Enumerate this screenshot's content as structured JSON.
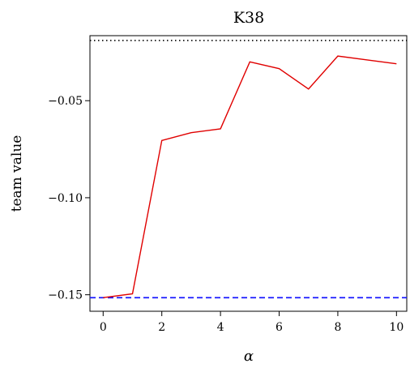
{
  "chart_data": {
    "type": "line",
    "title": "K38",
    "xlabel": "α",
    "ylabel": "team value",
    "xlim": [
      -0.45,
      10.35
    ],
    "ylim": [
      -0.1585,
      -0.0165
    ],
    "x_ticks": [
      0,
      2,
      4,
      6,
      8,
      10
    ],
    "y_ticks": [
      -0.15,
      -0.1,
      -0.05
    ],
    "y_tick_labels": [
      "−0.15",
      "−0.10",
      "−0.05"
    ],
    "grid": false,
    "series": [
      {
        "color": "#e00000",
        "style": "solid",
        "x": [
          0,
          1,
          2,
          3,
          4,
          5,
          6,
          7,
          8,
          9,
          10
        ],
        "y": [
          -0.1515,
          -0.1495,
          -0.0705,
          -0.0665,
          -0.0645,
          -0.03,
          -0.0335,
          -0.044,
          -0.027,
          -0.029,
          -0.031
        ]
      }
    ],
    "reference_lines": [
      {
        "y": -0.019,
        "style": "dotted",
        "color": "#000000"
      },
      {
        "y": -0.1515,
        "style": "dashed",
        "color": "#1a1aff"
      }
    ]
  }
}
